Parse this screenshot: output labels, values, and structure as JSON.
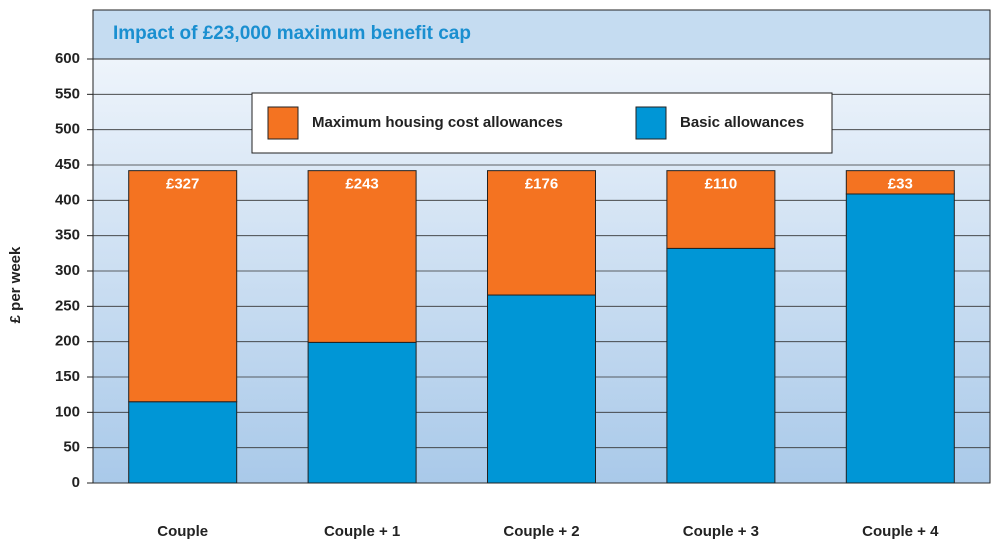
{
  "chart_data": {
    "type": "bar",
    "stacked": true,
    "title": "Impact of £23,000 maximum benefit cap",
    "y_label": "£ per week",
    "categories": [
      "Couple",
      "Couple + 1",
      "Couple + 2",
      "Couple + 3",
      "Couple + 4"
    ],
    "series": [
      {
        "name": "Maximum housing cost allowances",
        "color": "#f47321",
        "values": [
          327,
          243,
          176,
          110,
          33
        ],
        "value_labels": [
          "£327",
          "£243",
          "£176",
          "£110",
          "£33"
        ]
      },
      {
        "name": "Basic allowances",
        "color": "#0096d6",
        "values": [
          115,
          199,
          266,
          332,
          409
        ]
      }
    ],
    "ylim": [
      0,
      600
    ],
    "yticks": [
      0,
      50,
      100,
      150,
      200,
      250,
      300,
      350,
      400,
      450,
      500,
      550,
      600
    ],
    "grid": true
  }
}
